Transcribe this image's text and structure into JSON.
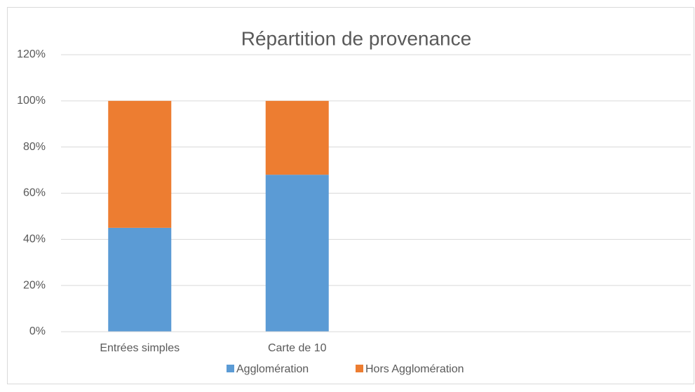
{
  "chart_data": {
    "type": "stacked_bar",
    "title": "Répartition de provenance",
    "categories": [
      "Entrées simples",
      "Carte de 10",
      null,
      null
    ],
    "series": [
      {
        "name": "Agglomération",
        "color": "#5b9bd5",
        "values": [
          45,
          68,
          null,
          null
        ]
      },
      {
        "name": "Hors Agglomération",
        "color": "#ed7d31",
        "values": [
          55,
          32,
          null,
          null
        ]
      }
    ],
    "ylim": [
      0,
      120
    ],
    "yticks": [
      {
        "value": 0,
        "label": "0%"
      },
      {
        "value": 20,
        "label": "20%"
      },
      {
        "value": 40,
        "label": "40%"
      },
      {
        "value": 60,
        "label": "60%"
      },
      {
        "value": 80,
        "label": "80%"
      },
      {
        "value": 100,
        "label": "100%"
      },
      {
        "value": 120,
        "label": "120%"
      }
    ],
    "grid": true,
    "legend": "bottom"
  }
}
